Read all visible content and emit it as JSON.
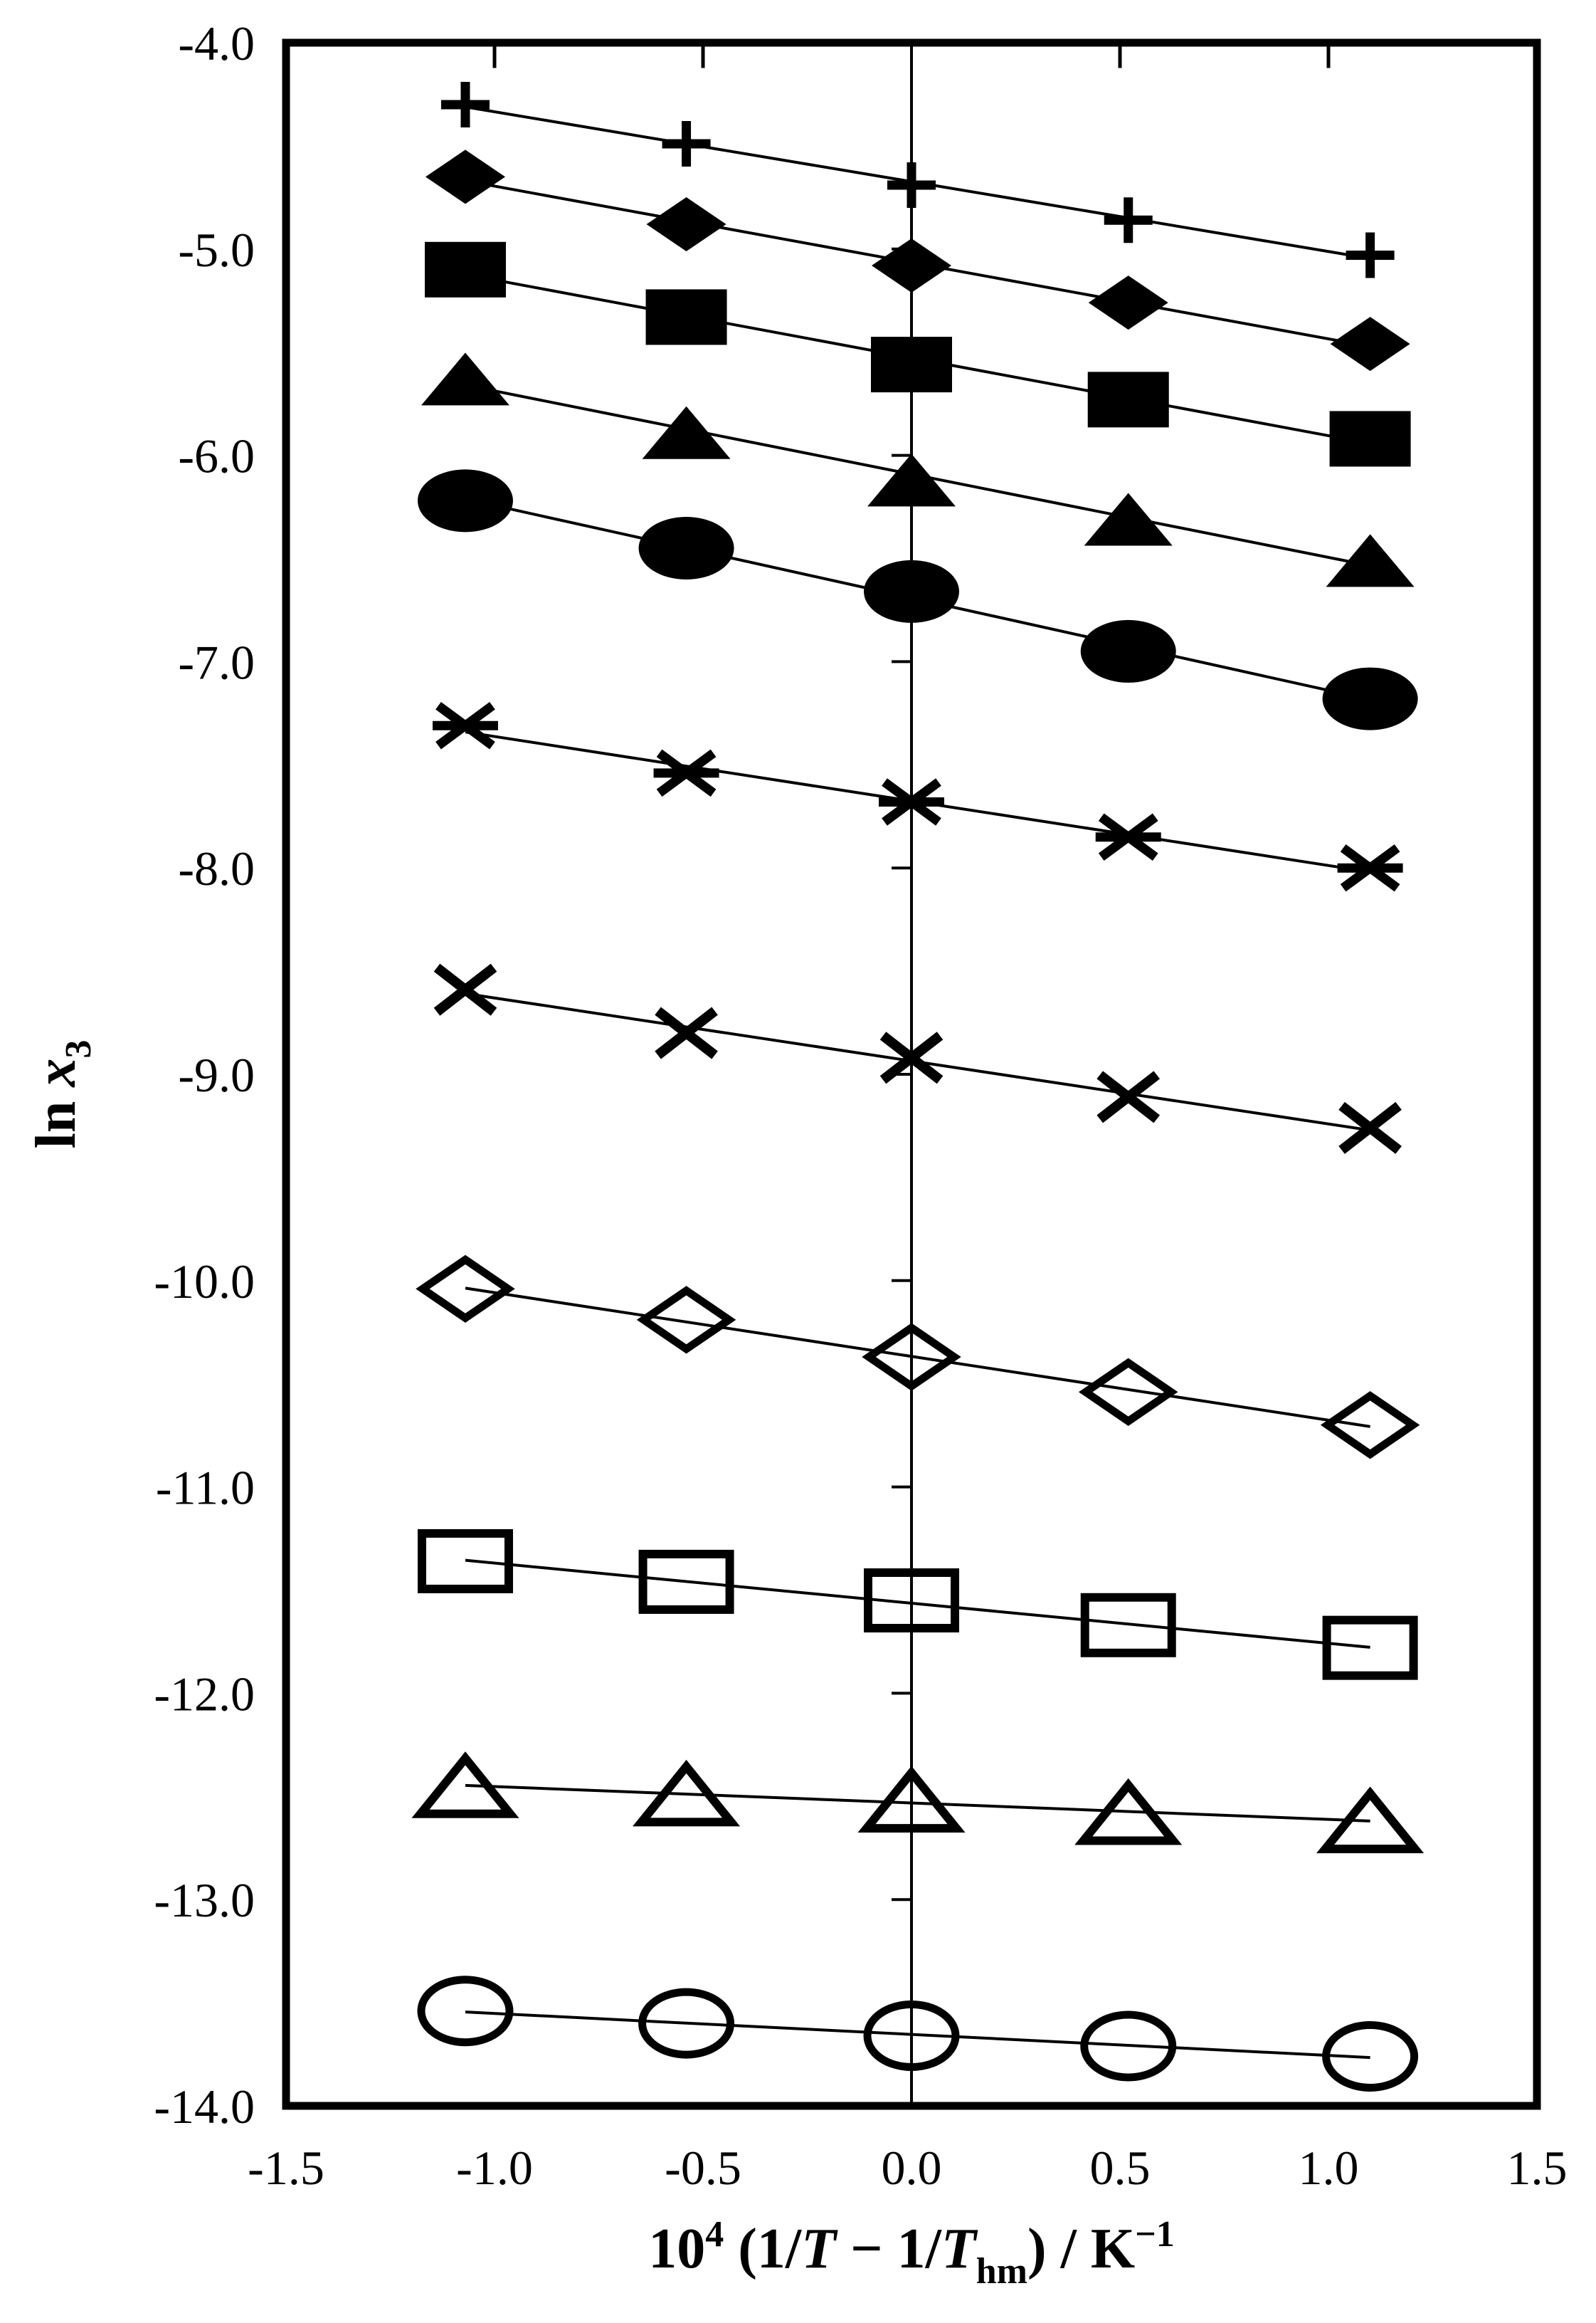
{
  "colors": {
    "ink": "#000000",
    "background": "#ffffff"
  },
  "chart_data": {
    "type": "scatter",
    "title": "",
    "legend": "none",
    "grid": false,
    "xlabel_segments": [
      {
        "t": "10"
      },
      {
        "t": "4",
        "style": "sup"
      },
      {
        "t": " (1/"
      },
      {
        "t": "T",
        "style": "italic"
      },
      {
        "t": " − 1/"
      },
      {
        "t": "T",
        "style": "italic"
      },
      {
        "t": "hm",
        "style": "sub"
      },
      {
        "t": ") / K"
      },
      {
        "t": "−1",
        "style": "sup"
      }
    ],
    "ylabel_segments": [
      {
        "t": "ln "
      },
      {
        "t": "x",
        "style": "italic"
      },
      {
        "t": "3",
        "style": "sub"
      }
    ],
    "xlim": [
      -1.5,
      1.5
    ],
    "ylim": [
      -14.0,
      -4.0
    ],
    "xtick_labels": [
      "-1.5",
      "-1.0",
      "-0.5",
      "0.0",
      "0.5",
      "1.0",
      "1.5"
    ],
    "ytick_labels": [
      "-4.0",
      "-5.0",
      "-6.0",
      "-7.0",
      "-8.0",
      "-9.0",
      "-10.0",
      "-11.0",
      "-12.0",
      "-13.0",
      "-14.0"
    ],
    "top_axis_tick_x": [
      -1.0,
      -0.5,
      0.5,
      1.0
    ],
    "zero_axis_tick_y": [
      -5,
      -6,
      -7,
      -8,
      -9,
      -10,
      -11,
      -12,
      -13
    ],
    "x": [
      -1.07,
      -0.54,
      0.0,
      0.52,
      1.1
    ],
    "series": [
      {
        "name": "plus",
        "marker": "plus",
        "values": [
          -4.3,
          -4.49,
          -4.69,
          -4.86,
          -5.03
        ]
      },
      {
        "name": "filled-diamond",
        "marker": "diamond-filled",
        "values": [
          -4.65,
          -4.88,
          -5.08,
          -5.26,
          -5.46
        ]
      },
      {
        "name": "filled-square",
        "marker": "square-filled",
        "values": [
          -5.1,
          -5.33,
          -5.56,
          -5.73,
          -5.92
        ]
      },
      {
        "name": "filled-triangle",
        "marker": "triangle-filled",
        "values": [
          -5.63,
          -5.89,
          -6.12,
          -6.31,
          -6.51
        ]
      },
      {
        "name": "filled-circle",
        "marker": "circle-filled",
        "values": [
          -6.22,
          -6.45,
          -6.66,
          -6.95,
          -7.18
        ]
      },
      {
        "name": "asterisk",
        "marker": "asterisk",
        "values": [
          -7.31,
          -7.54,
          -7.68,
          -7.85,
          -8.0
        ]
      },
      {
        "name": "x-cross",
        "marker": "x",
        "values": [
          -8.59,
          -8.8,
          -8.92,
          -9.11,
          -9.26
        ]
      },
      {
        "name": "open-diamond",
        "marker": "diamond-open",
        "values": [
          -10.04,
          -10.19,
          -10.37,
          -10.54,
          -10.7
        ]
      },
      {
        "name": "open-square",
        "marker": "square-open",
        "values": [
          -11.36,
          -11.46,
          -11.55,
          -11.67,
          -11.78
        ]
      },
      {
        "name": "open-triangle",
        "marker": "triangle-open",
        "values": [
          -12.45,
          -12.49,
          -12.52,
          -12.58,
          -12.62
        ]
      },
      {
        "name": "open-circle",
        "marker": "circle-open",
        "values": [
          -13.54,
          -13.6,
          -13.66,
          -13.71,
          -13.76
        ]
      }
    ]
  }
}
